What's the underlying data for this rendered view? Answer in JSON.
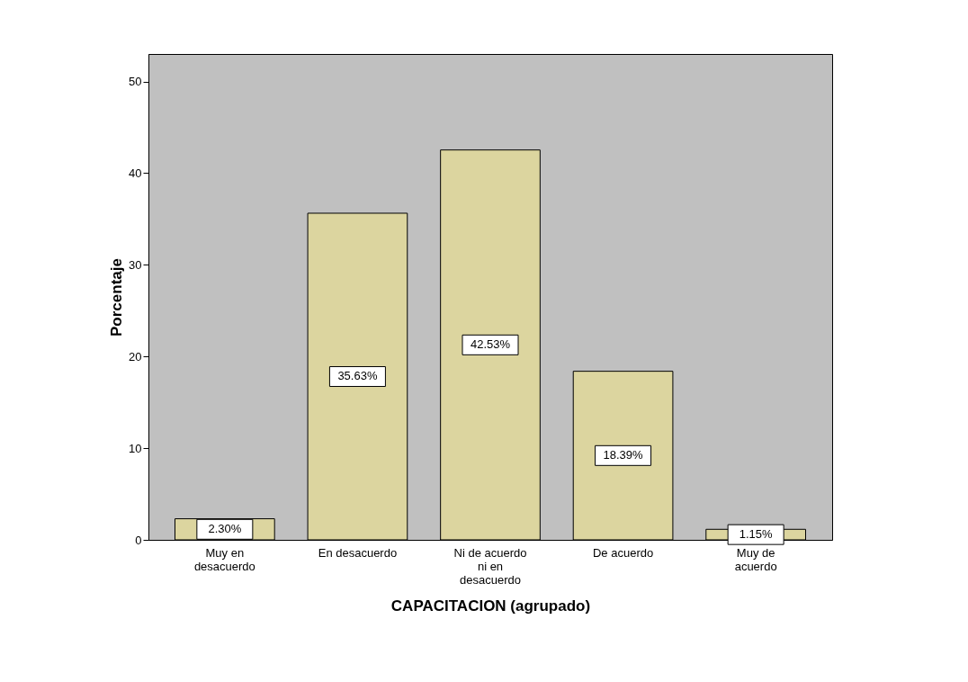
{
  "chart_data": {
    "type": "bar",
    "xlabel": "CAPACITACION (agrupado)",
    "ylabel": "Porcentaje",
    "categories": [
      "Muy en desacuerdo",
      "En desacuerdo",
      "Ni de acuerdo ni en desacuerdo",
      "De acuerdo",
      "Muy de acuerdo"
    ],
    "values": [
      2.3,
      35.63,
      42.53,
      18.39,
      1.15
    ],
    "value_labels": [
      "2.30%",
      "35.63%",
      "42.53%",
      "18.39%",
      "1.15%"
    ],
    "color": "#dcd59f",
    "ylim": [
      0,
      53
    ],
    "yticks": [
      0,
      10,
      20,
      30,
      40,
      50
    ],
    "grid": false
  }
}
